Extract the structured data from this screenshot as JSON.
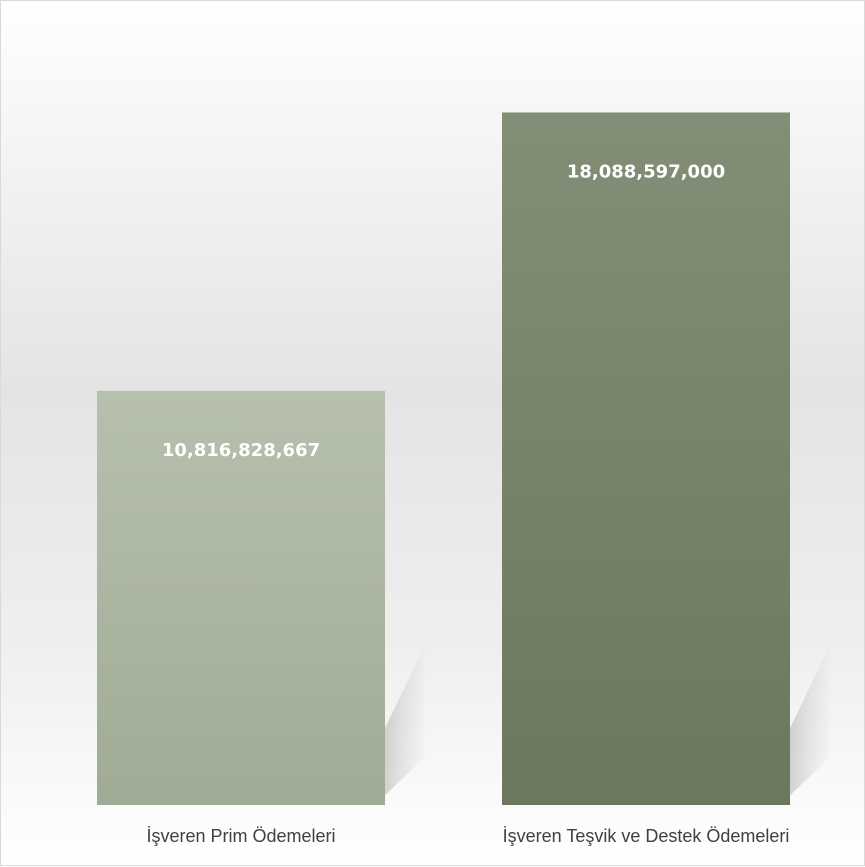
{
  "chart_data": {
    "type": "bar",
    "categories": [
      "İşveren Prim Ödemeleri",
      "İşveren Teşvik ve Destek Ödemeleri"
    ],
    "values": [
      10816828667,
      18088597000
    ],
    "data_labels": [
      "10,816,828,667",
      "18,088,597,000"
    ],
    "title": "",
    "xlabel": "",
    "ylabel": "",
    "ylim": [
      0,
      21000000000
    ],
    "grid": false,
    "legend": "none",
    "colors": [
      "#a9b4a0",
      "#6e7a62"
    ]
  }
}
